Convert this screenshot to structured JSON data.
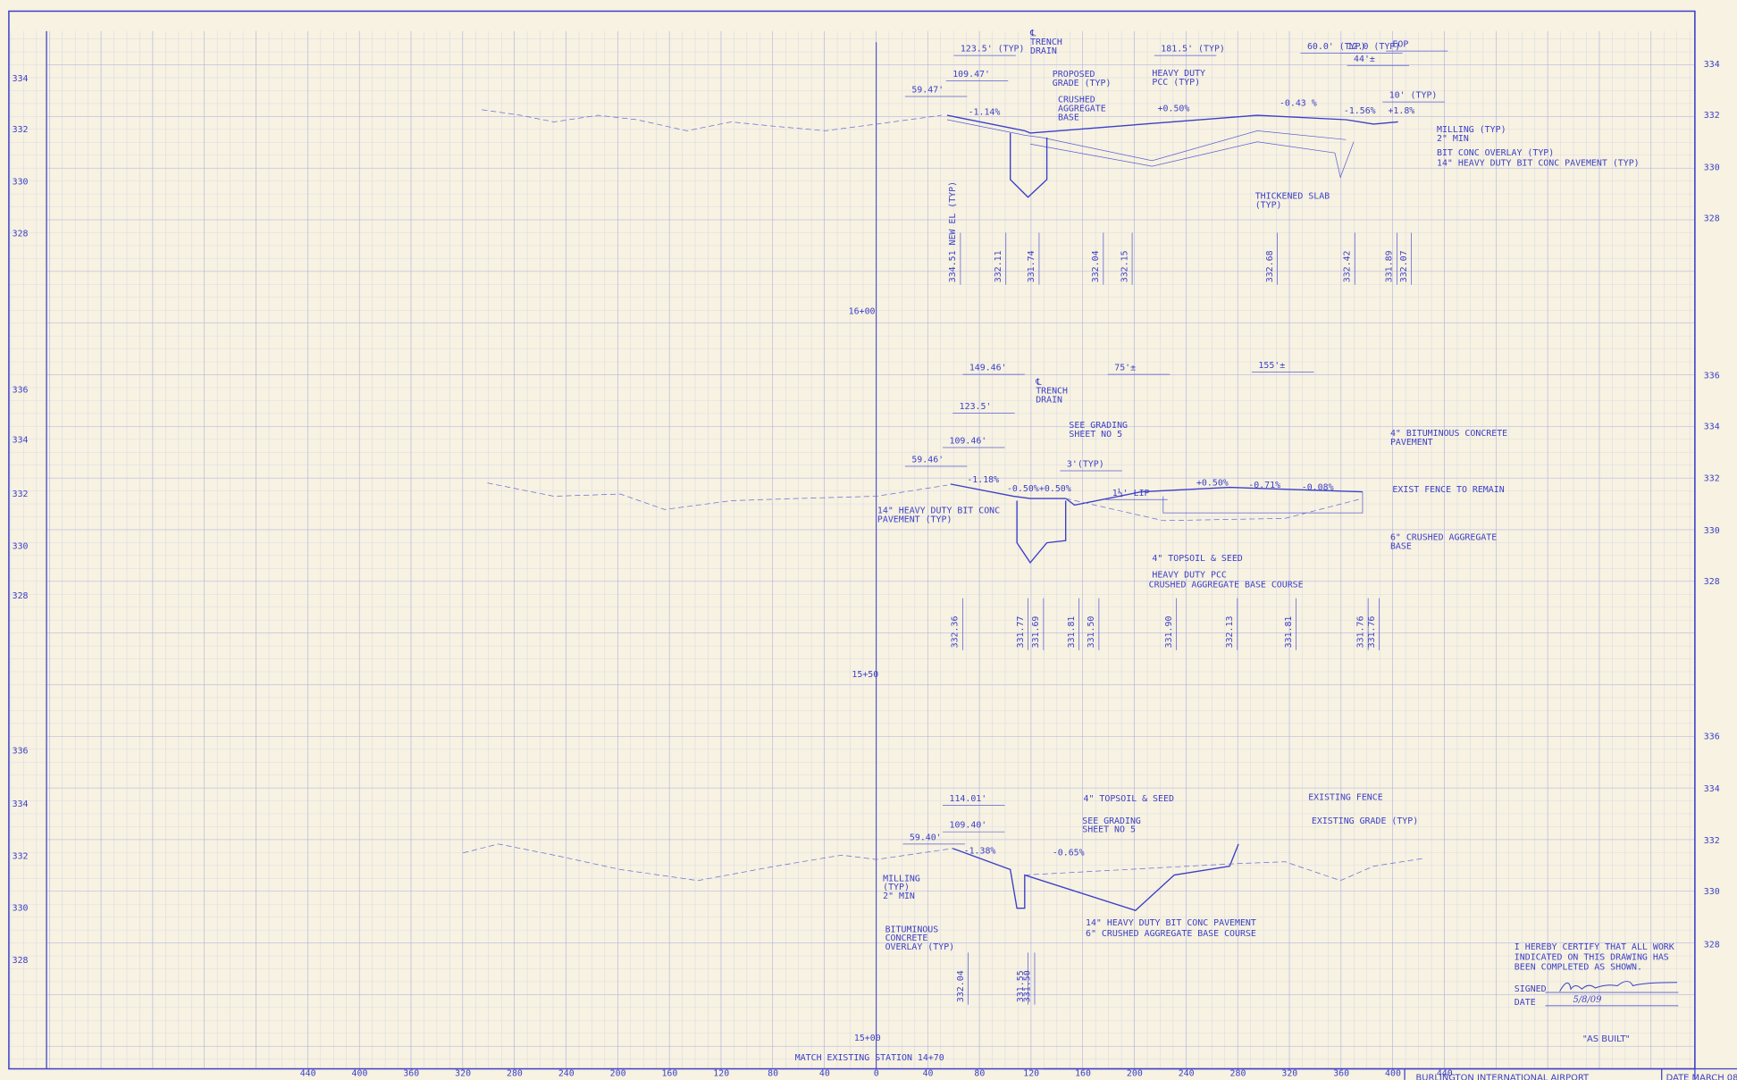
{
  "sections": [
    {
      "station": "16+00",
      "elevations_left": [
        "334",
        "332",
        "330",
        "328"
      ],
      "elevations_right": [
        "334",
        "332",
        "330",
        "328"
      ],
      "dimensions": [
        "123.5' (TYP)",
        "181.5' (TYP)",
        "60.0' (TYP)",
        "12.0 (TYP)",
        "44'±",
        "EOP",
        "109.47'",
        "59.47'",
        "10' (TYP)"
      ],
      "notes": [
        [
          "℄",
          "TRENCH",
          "DRAIN"
        ],
        [
          "PROPOSED",
          "GRADE (TYP)"
        ],
        [
          "HEAVY DUTY",
          "PCC (TYP)"
        ],
        [
          "CRUSHED",
          "AGGREGATE",
          "BASE"
        ],
        [
          "MILLING (TYP)",
          "2\" MIN"
        ],
        [
          "BIT CONC OVERLAY (TYP)"
        ],
        [
          "14\" HEAVY DUTY BIT CONC PAVEMENT (TYP)"
        ],
        [
          "THICKENED SLAB",
          "(TYP)"
        ]
      ],
      "grades": [
        "-1.14%",
        "+0.50%",
        "-0.43 %",
        "-1.56%",
        "+1.8%"
      ],
      "spot_elevations": [
        "334.51 NEW EL (TYP)",
        "332.11",
        "331.74",
        "332.04",
        "332.15",
        "332.68",
        "332.42",
        "331.89",
        "332.07"
      ]
    },
    {
      "station": "15+50",
      "elevations_left": [
        "336",
        "334",
        "332",
        "330",
        "328"
      ],
      "elevations_right": [
        "336",
        "334",
        "332",
        "330",
        "328"
      ],
      "dimensions": [
        "149.46'",
        "75'±",
        "155'±",
        "123.5'",
        "109.46'",
        "59.46'",
        "3'(TYP)",
        "1½' LIP"
      ],
      "notes": [
        [
          "℄",
          "TRENCH",
          "DRAIN"
        ],
        [
          "SEE GRADING",
          "SHEET NO 5"
        ],
        [
          "4\" BITUMINOUS CONCRETE",
          "PAVEMENT"
        ],
        [
          "EXIST FENCE TO REMAIN"
        ],
        [
          "6\" CRUSHED AGGREGATE",
          "BASE"
        ],
        [
          "14\" HEAVY DUTY BIT CONC",
          "PAVEMENT (TYP)"
        ],
        [
          "4\" TOPSOIL & SEED"
        ],
        [
          "HEAVY DUTY PCC"
        ],
        [
          "CRUSHED AGGREGATE BASE COURSE"
        ]
      ],
      "grades": [
        "-1.18%",
        "-0.50%",
        "+0.50%",
        "+0.50%",
        "-0.71%",
        "-0.08%"
      ],
      "spot_elevations": [
        "332.36",
        "331.77",
        "331.69",
        "331.81",
        "331.50",
        "331.90",
        "332.13",
        "331.81",
        "331.76",
        "331.76"
      ]
    },
    {
      "station": "15+00",
      "elevations_left": [
        "336",
        "334",
        "332",
        "330",
        "328"
      ],
      "elevations_right": [
        "336",
        "334",
        "332",
        "330",
        "328"
      ],
      "dimensions": [
        "114.01'",
        "109.40'",
        "59.40'"
      ],
      "notes": [
        [
          "4\" TOPSOIL & SEED"
        ],
        [
          "SEE GRADING",
          "SHEET NO 5"
        ],
        [
          "EXISTING FENCE"
        ],
        [
          "EXISTING GRADE (TYP)"
        ],
        [
          "MILLING",
          "(TYP)",
          "2\" MIN"
        ],
        [
          "BITUMINOUS",
          "CONCRETE",
          "OVERLAY (TYP)"
        ],
        [
          "14\" HEAVY DUTY BIT CONC PAVEMENT"
        ],
        [
          "6\" CRUSHED AGGREGATE BASE COURSE"
        ]
      ],
      "grades": [
        "-1.38%",
        "-0.65%"
      ],
      "spot_elevations": [
        "332.04",
        "331.55",
        "331.50"
      ]
    }
  ],
  "bottom_axis": {
    "title": "MATCH EXISTING STATION 14+70",
    "ticks": [
      "440",
      "400",
      "360",
      "320",
      "280",
      "240",
      "200",
      "160",
      "120",
      "80",
      "40",
      "0",
      "40",
      "80",
      "120",
      "160",
      "200",
      "240",
      "280",
      "320",
      "360",
      "400",
      "440"
    ]
  },
  "certification": {
    "lines": [
      "I HEREBY CERTIFY THAT ALL WORK",
      "INDICATED ON THIS DRAWING HAS",
      "BEEN COMPLETED AS SHOWN."
    ],
    "signed_label": "SIGNED",
    "date_label": "DATE",
    "date": "5/8/09"
  },
  "stamp": "\"AS BUILT\"",
  "title_block": {
    "project": "BURLINGTON INTERNATIONAL AIRPORT",
    "date": "DATE MARCH 08"
  }
}
